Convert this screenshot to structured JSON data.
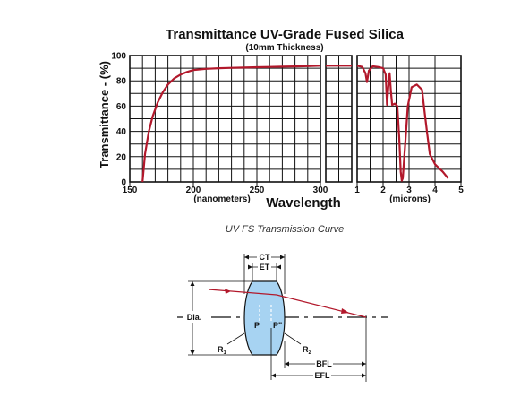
{
  "chart_data": {
    "type": "line",
    "title": "Transmittance UV-Grade Fused Silica",
    "subtitle": "(10mm Thickness)",
    "ylabel": "Transmittance - (%)",
    "xlabel": "Wavelength",
    "ylim": [
      0,
      100
    ],
    "y_ticks": [
      "0",
      "20",
      "40",
      "60",
      "80",
      "100"
    ],
    "grid": true,
    "panels": [
      {
        "unit_label": "(nanometers)",
        "xlim": [
          150,
          300
        ],
        "x_ticks": [
          "150",
          "200",
          "250",
          "300"
        ],
        "x": [
          160,
          162,
          165,
          168,
          172,
          176,
          180,
          185,
          190,
          195,
          200,
          210,
          220,
          230,
          240,
          250,
          260,
          270,
          280,
          290,
          300
        ],
        "y": [
          0,
          22,
          40,
          52,
          63,
          71,
          77,
          82,
          85,
          87,
          88.5,
          89.5,
          90,
          90.3,
          90.5,
          90.8,
          91,
          91.2,
          91.4,
          91.6,
          92
        ]
      },
      {
        "unit_label": "",
        "xlim": [
          300,
          800
        ],
        "x_ticks": [],
        "x": [
          300,
          800
        ],
        "y": [
          92,
          92
        ]
      },
      {
        "unit_label": "(microns)",
        "xlim": [
          1,
          5
        ],
        "x_ticks": [
          "1",
          "2",
          "3",
          "4",
          "5"
        ],
        "x": [
          1.0,
          1.2,
          1.32,
          1.38,
          1.45,
          1.6,
          1.8,
          2.0,
          2.1,
          2.15,
          2.2,
          2.25,
          2.3,
          2.35,
          2.45,
          2.55,
          2.62,
          2.68,
          2.72,
          2.76,
          2.8,
          2.86,
          2.95,
          3.1,
          3.3,
          3.5,
          3.6,
          3.7,
          3.8,
          4.0,
          4.3,
          4.5
        ],
        "y": [
          92,
          91,
          86,
          79,
          88,
          91.5,
          91,
          90,
          85,
          61,
          75,
          86,
          72,
          61,
          62,
          60,
          35,
          8,
          1,
          3,
          15,
          32,
          60,
          75,
          77,
          73,
          55,
          38,
          22,
          14,
          8,
          3
        ]
      }
    ]
  },
  "figure": {
    "caption": "UV FS Transmission Curve",
    "labels": {
      "ct": "CT",
      "et": "ET",
      "dia": "Dia.",
      "p": "P",
      "p_prime": "P\"",
      "r1": "R1",
      "r2": "R2",
      "bfl": "BFL",
      "efl": "EFL"
    }
  },
  "colors": {
    "curve": "#b2182b",
    "lens_fill": "#a7d3f2",
    "grid": "#111111"
  }
}
